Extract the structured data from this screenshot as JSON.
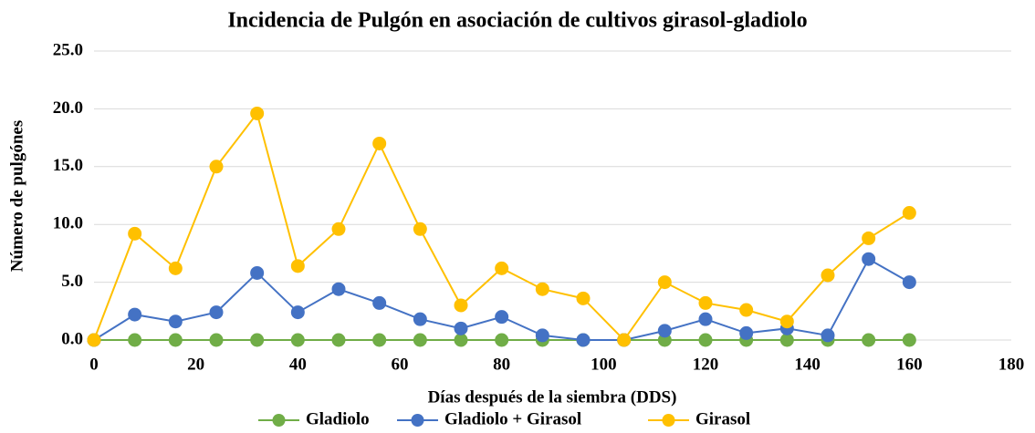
{
  "chart_data": {
    "type": "line",
    "title": "Incidencia de Pulgón en asociación de cultivos girasol-gladiolo",
    "x_label": "Días después de la siembra (DDS)",
    "y_label": "Número de pulgónes",
    "x": [
      0,
      8,
      16,
      24,
      32,
      40,
      48,
      56,
      64,
      72,
      80,
      88,
      96,
      104,
      112,
      120,
      128,
      136,
      144,
      152,
      160
    ],
    "series": [
      {
        "name": "Gladiolo",
        "color": "#70ad47",
        "values": [
          0,
          0,
          0,
          0,
          0,
          0,
          0,
          0,
          0,
          0,
          0,
          0,
          0,
          0,
          0,
          0,
          0,
          0,
          0,
          0,
          0
        ]
      },
      {
        "name": "Gladiolo + Girasol",
        "color": "#4472c4",
        "values": [
          0,
          2.2,
          1.6,
          2.4,
          5.8,
          2.4,
          4.4,
          3.2,
          1.8,
          1.0,
          2.0,
          0.4,
          0,
          0,
          0.8,
          1.8,
          0.6,
          1.0,
          0.4,
          7.0,
          5.0
        ]
      },
      {
        "name": "Girasol",
        "color": "#ffc000",
        "values": [
          0,
          9.2,
          6.2,
          15.0,
          19.6,
          6.4,
          9.6,
          17.0,
          9.6,
          3.0,
          6.2,
          4.4,
          3.6,
          0,
          5.0,
          3.2,
          2.6,
          1.6,
          5.6,
          8.8,
          11.0
        ]
      }
    ],
    "xlim": [
      0,
      180
    ],
    "xticks": [
      0,
      20,
      40,
      60,
      80,
      100,
      120,
      140,
      160,
      180
    ],
    "ylim": [
      0,
      25
    ],
    "yticks": [
      {
        "value": 0,
        "label": "0.0"
      },
      {
        "value": 5,
        "label": "5.0"
      },
      {
        "value": 10,
        "label": "10.0"
      },
      {
        "value": 15,
        "label": "15.0"
      },
      {
        "value": 20,
        "label": "20.0"
      },
      {
        "value": 25,
        "label": "25.0"
      }
    ],
    "grid": true,
    "legend": "bottom"
  }
}
